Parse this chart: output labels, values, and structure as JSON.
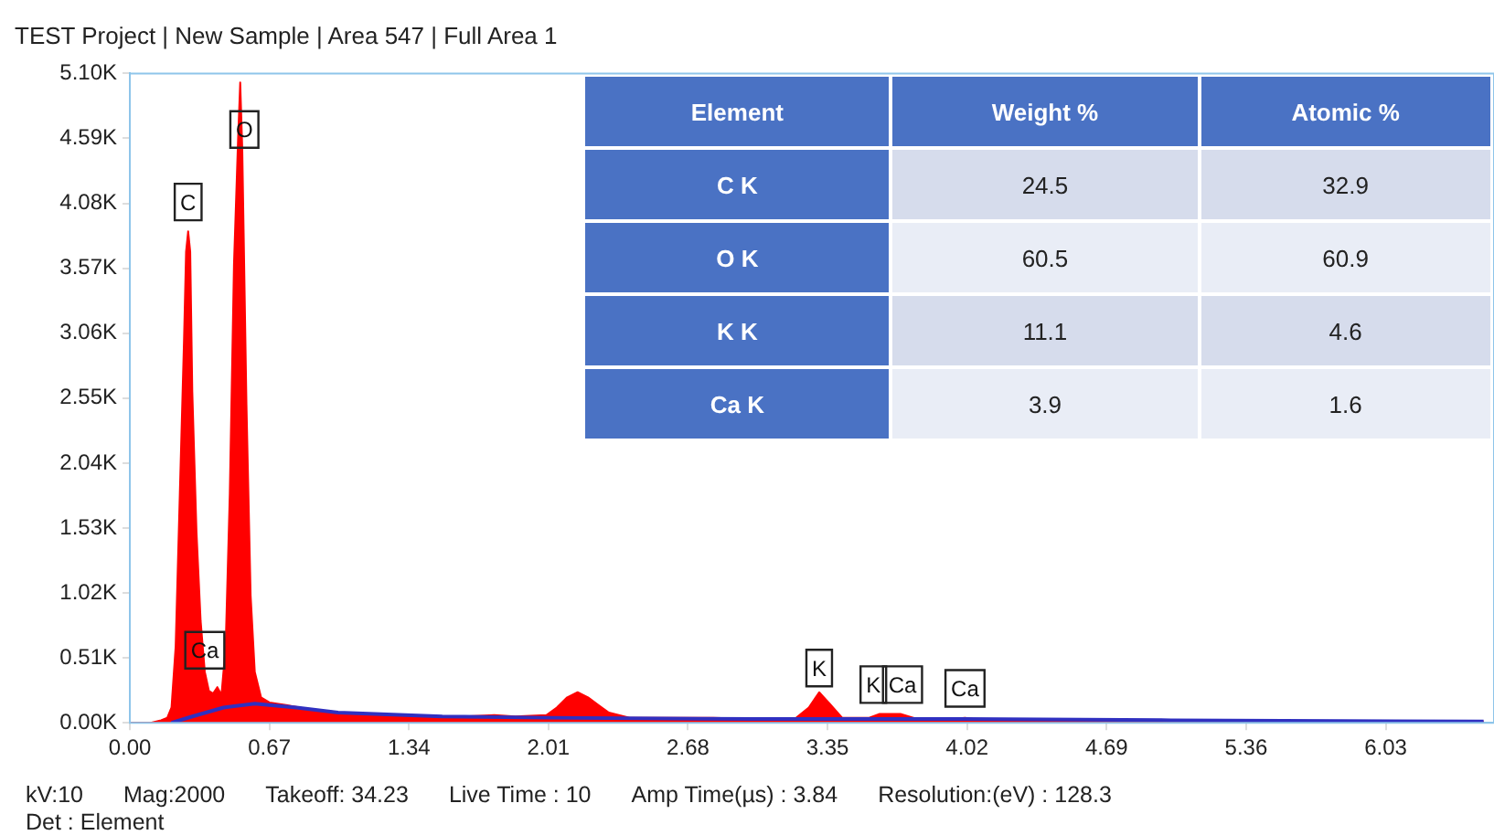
{
  "chart_data": [
    {
      "type": "area",
      "title": "TEST Project | New Sample | Area 547 | Full Area 1",
      "xlim": [
        0,
        6.55
      ],
      "xticks": [
        {
          "value": 0,
          "label": "0.00"
        },
        0.67,
        1.34,
        2.01,
        2.68,
        3.35,
        4.02,
        4.69,
        5.36,
        6.03
      ],
      "ylim": [
        0,
        5100
      ],
      "yticks": [
        {
          "value": 0,
          "label": "0.00K"
        },
        {
          "value": 510,
          "label": "0.51K"
        },
        {
          "value": 1020,
          "label": "1.02K"
        },
        {
          "value": 1530,
          "label": "1.53K"
        },
        {
          "value": 2040,
          "label": "2.04K"
        },
        {
          "value": 2550,
          "label": "2.55K"
        },
        {
          "value": 3060,
          "label": "3.06K"
        },
        {
          "value": 3570,
          "label": "3.57K"
        },
        {
          "value": 4080,
          "label": "4.08K"
        },
        {
          "value": 4590,
          "label": "4.59K"
        },
        {
          "value": 5100,
          "label": "5.10K"
        }
      ],
      "grid": false,
      "legend": false,
      "series": [
        {
          "type": "area",
          "color": "#ff0000",
          "x": [
            0,
            0.1,
            0.15,
            0.18,
            0.2,
            0.22,
            0.24,
            0.26,
            0.27,
            0.28,
            0.29,
            0.3,
            0.32,
            0.34,
            0.36,
            0.38,
            0.4,
            0.42,
            0.44,
            0.46,
            0.48,
            0.5,
            0.52,
            0.53,
            0.54,
            0.56,
            0.58,
            0.6,
            0.63,
            0.67,
            0.75,
            0.85,
            1.0,
            1.15,
            1.3,
            1.45,
            1.6,
            1.75,
            1.85,
            2.0,
            2.05,
            2.1,
            2.15,
            2.2,
            2.25,
            2.3,
            2.4,
            2.6,
            2.8,
            3.0,
            3.2,
            3.26,
            3.31,
            3.36,
            3.42,
            3.55,
            3.6,
            3.7,
            3.78,
            3.95,
            4.01,
            4.1,
            4.5,
            5.0,
            5.5,
            6.0,
            6.5
          ],
          "values": [
            0,
            0,
            20,
            40,
            120,
            600,
            1800,
            3000,
            3700,
            3860,
            3700,
            2600,
            1500,
            800,
            400,
            250,
            230,
            280,
            220,
            600,
            1800,
            3600,
            4600,
            5030,
            4500,
            2500,
            1000,
            400,
            200,
            160,
            140,
            110,
            80,
            60,
            60,
            50,
            50,
            60,
            50,
            60,
            120,
            200,
            240,
            200,
            140,
            80,
            40,
            40,
            40,
            30,
            40,
            120,
            240,
            150,
            40,
            40,
            70,
            70,
            30,
            30,
            40,
            20,
            20,
            10,
            10,
            10,
            10
          ]
        },
        {
          "type": "line",
          "color": "#3030c0",
          "x": [
            0.2,
            0.3,
            0.45,
            0.6,
            0.8,
            1.0,
            1.5,
            2.0,
            3.0,
            4.0,
            5.0,
            6.5
          ],
          "values": [
            0,
            50,
            120,
            150,
            120,
            80,
            50,
            40,
            30,
            30,
            20,
            10
          ]
        }
      ],
      "annotations": [
        {
          "text": "C",
          "x": 0.28,
          "y": 4090
        },
        {
          "text": "O",
          "x": 0.55,
          "y": 4660
        },
        {
          "text": "Ca",
          "x": 0.36,
          "y": 570
        },
        {
          "text": "K",
          "x": 3.31,
          "y": 430
        },
        {
          "text": "K",
          "x": 3.57,
          "y": 300
        },
        {
          "text": "Ca",
          "x": 3.71,
          "y": 300
        },
        {
          "text": "Ca",
          "x": 4.01,
          "y": 270
        },
        "kV:10",
        "Mag:2000",
        "Takeoff: 34.23",
        "Live Time : 10",
        "Amp Time(µs) : 3.84",
        "Resolution:(eV) : 128.3",
        "Det : Element"
      ]
    },
    {
      "type": "heatmap",
      "ylabel": "Element",
      "data_labels": true,
      "categories": [
        "Weight %",
        "Atomic %"
      ],
      "y_categories": [
        "C K",
        "O K",
        "K K",
        "Ca K"
      ],
      "cells": [
        [
          24.5,
          32.9
        ],
        [
          60.5,
          60.9
        ],
        [
          11.1,
          4.6
        ],
        [
          3.9,
          1.6
        ]
      ]
    }
  ]
}
